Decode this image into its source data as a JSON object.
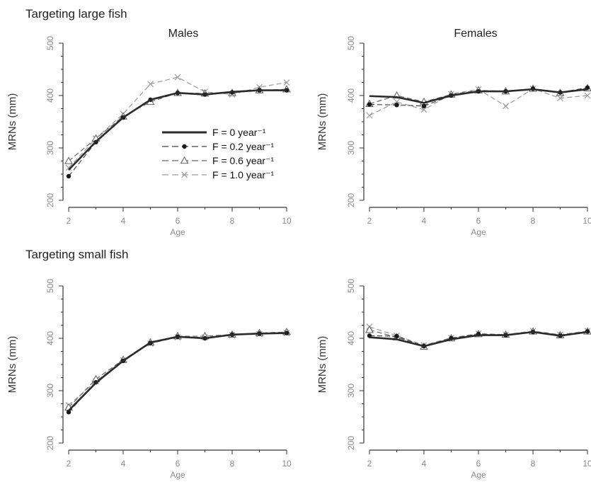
{
  "section_titles": {
    "top": "Targeting large fish",
    "bottom": "Targeting small fish"
  },
  "legend": [
    {
      "label": "F = 0 year⁻¹",
      "style": "solid-thick",
      "marker": "none"
    },
    {
      "label": "F = 0.2 year⁻¹",
      "style": "dashed",
      "marker": "dot"
    },
    {
      "label": "F = 0.6 year⁻¹",
      "style": "dashed",
      "marker": "triangle"
    },
    {
      "label": "F = 1.0 year⁻¹",
      "style": "dashed-light",
      "marker": "cross"
    }
  ],
  "chart_data": [
    {
      "type": "line",
      "group": "Targeting large fish",
      "title": "Males",
      "xlabel": "Age",
      "ylabel": "MRNs (mm)",
      "xlim": [
        2,
        10
      ],
      "ylim": [
        200,
        500
      ],
      "xticks": [
        2,
        4,
        6,
        8,
        10
      ],
      "yticks": [
        200,
        300,
        400,
        500
      ],
      "x": [
        2,
        3,
        4,
        5,
        6,
        7,
        8,
        9,
        10
      ],
      "series": [
        {
          "name": "F = 0 year⁻¹",
          "values": [
            258,
            312,
            358,
            392,
            405,
            402,
            407,
            410,
            410
          ]
        },
        {
          "name": "F = 0.2 year⁻¹",
          "values": [
            246,
            311,
            358,
            392,
            405,
            402,
            406,
            410,
            410
          ]
        },
        {
          "name": "F = 0.6 year⁻¹",
          "values": [
            275,
            318,
            360,
            388,
            405,
            404,
            405,
            410,
            412
          ]
        },
        {
          "name": "F = 1.0 year⁻¹",
          "values": [
            262,
            318,
            365,
            422,
            435,
            407,
            402,
            416,
            425
          ]
        }
      ]
    },
    {
      "type": "line",
      "group": "Targeting large fish",
      "title": "Females",
      "xlabel": "Age",
      "ylabel": "MRNs (mm)",
      "xlim": [
        2,
        10
      ],
      "ylim": [
        200,
        500
      ],
      "xticks": [
        2,
        4,
        6,
        8,
        10
      ],
      "yticks": [
        200,
        300,
        400,
        500
      ],
      "x": [
        2,
        3,
        4,
        5,
        6,
        7,
        8,
        9,
        10
      ],
      "series": [
        {
          "name": "F = 0 year⁻¹",
          "values": [
            399,
            397,
            386,
            400,
            408,
            408,
            412,
            406,
            412
          ]
        },
        {
          "name": "F = 0.2 year⁻¹",
          "values": [
            383,
            382,
            380,
            400,
            408,
            408,
            413,
            406,
            415
          ]
        },
        {
          "name": "F = 0.6 year⁻¹",
          "values": [
            384,
            400,
            388,
            402,
            410,
            408,
            413,
            405,
            414
          ]
        },
        {
          "name": "F = 1.0 year⁻¹",
          "values": [
            362,
            388,
            373,
            403,
            412,
            380,
            413,
            395,
            400
          ]
        }
      ]
    },
    {
      "type": "line",
      "group": "Targeting small fish",
      "title": "",
      "xlabel": "Age",
      "ylabel": "MRNs (mm)",
      "xlim": [
        2,
        10
      ],
      "ylim": [
        200,
        500
      ],
      "xticks": [
        2,
        4,
        6,
        8,
        10
      ],
      "yticks": [
        200,
        300,
        400,
        500
      ],
      "x": [
        2,
        3,
        4,
        5,
        6,
        7,
        8,
        9,
        10
      ],
      "series": [
        {
          "name": "F = 0 year⁻¹",
          "values": [
            262,
            315,
            357,
            392,
            403,
            400,
            407,
            409,
            410
          ]
        },
        {
          "name": "F = 0.2 year⁻¹",
          "values": [
            259,
            316,
            357,
            391,
            403,
            400,
            407,
            409,
            410
          ]
        },
        {
          "name": "F = 0.6 year⁻¹",
          "values": [
            268,
            322,
            359,
            392,
            404,
            404,
            407,
            410,
            412
          ]
        },
        {
          "name": "F = 1.0 year⁻¹",
          "values": [
            272,
            318,
            358,
            390,
            402,
            402,
            406,
            408,
            410
          ]
        }
      ]
    },
    {
      "type": "line",
      "group": "Targeting small fish",
      "title": "",
      "xlabel": "Age",
      "ylabel": "MRNs (mm)",
      "xlim": [
        2,
        10
      ],
      "ylim": [
        200,
        500
      ],
      "xticks": [
        2,
        4,
        6,
        8,
        10
      ],
      "yticks": [
        200,
        300,
        400,
        500
      ],
      "x": [
        2,
        3,
        4,
        5,
        6,
        7,
        8,
        9,
        10
      ],
      "series": [
        {
          "name": "F = 0 year⁻¹",
          "values": [
            402,
            398,
            385,
            398,
            406,
            406,
            412,
            405,
            412
          ]
        },
        {
          "name": "F = 0.2 year⁻¹",
          "values": [
            405,
            404,
            385,
            400,
            408,
            406,
            412,
            405,
            413
          ]
        },
        {
          "name": "F = 0.6 year⁻¹",
          "values": [
            416,
            402,
            384,
            400,
            408,
            407,
            413,
            406,
            413
          ]
        },
        {
          "name": "F = 1.0 year⁻¹",
          "values": [
            422,
            405,
            387,
            401,
            409,
            407,
            414,
            407,
            414
          ]
        }
      ]
    }
  ]
}
